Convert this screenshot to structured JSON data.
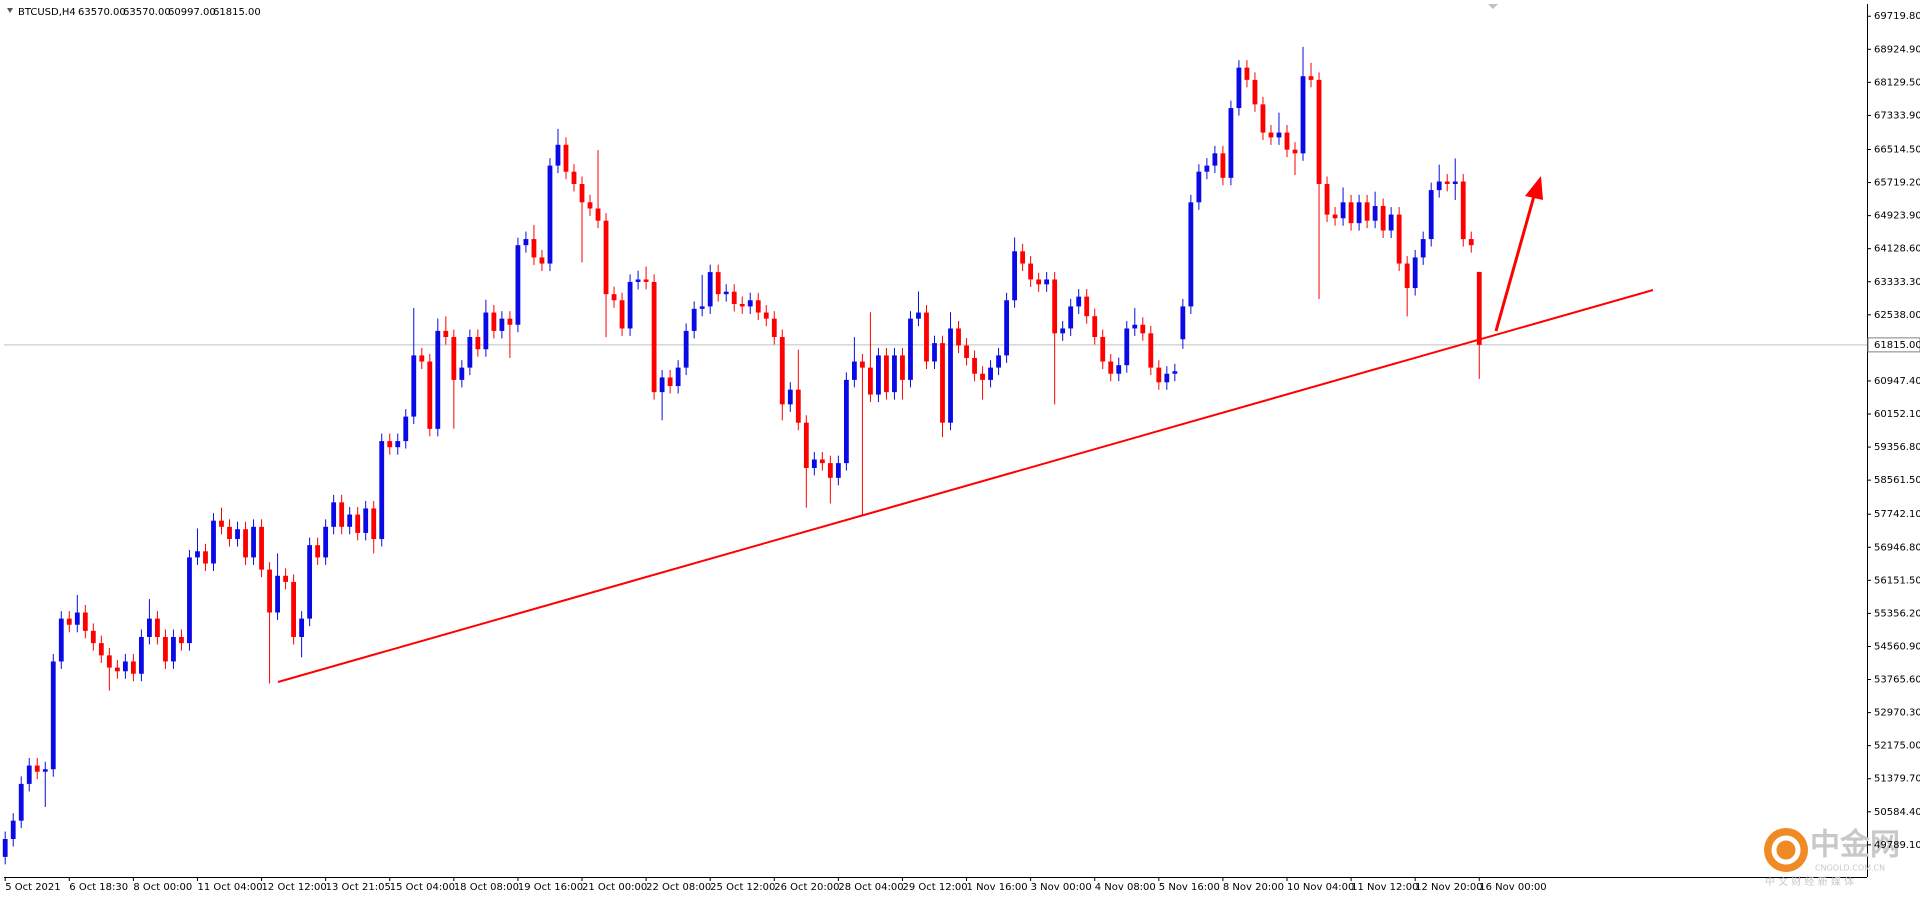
{
  "header": {
    "symbol": "BTCUSD,H4",
    "values": [
      "63570.00",
      "63570.00",
      "60997.00",
      "61815.00"
    ]
  },
  "watermark": {
    "name": "中金网",
    "url": "CNGOLD.COM.CN",
    "slogan": "中 文 财 经 新 媒 体"
  },
  "chart_data": {
    "type": "candlestick",
    "up_color": "#0a0ae6",
    "down_color": "#ff0000",
    "xlim": [
      -0.15,
      232.4
    ],
    "ylim": [
      49016,
      70014
    ],
    "price_line": {
      "value": 61815,
      "label": "61815.00"
    },
    "yticks": [
      {
        "value": 69719.8,
        "label": "69719.80"
      },
      {
        "value": 68924.9,
        "label": "68924.90"
      },
      {
        "value": 68129.5,
        "label": "68129.50"
      },
      {
        "value": 67333.9,
        "label": "67333.90"
      },
      {
        "value": 66514.5,
        "label": "66514.50"
      },
      {
        "value": 65719.2,
        "label": "65719.20"
      },
      {
        "value": 64923.9,
        "label": "64923.90"
      },
      {
        "value": 64128.6,
        "label": "64128.60"
      },
      {
        "value": 63333.3,
        "label": "63333.30"
      },
      {
        "value": 62538,
        "label": "62538.00"
      },
      {
        "value": 60947.4,
        "label": "60947.40"
      },
      {
        "value": 60152.1,
        "label": "60152.10"
      },
      {
        "value": 59356.8,
        "label": "59356.80"
      },
      {
        "value": 58561.5,
        "label": "58561.50"
      },
      {
        "value": 57742.1,
        "label": "57742.10"
      },
      {
        "value": 56946.8,
        "label": "56946.80"
      },
      {
        "value": 56151.5,
        "label": "56151.50"
      },
      {
        "value": 55356.2,
        "label": "55356.20"
      },
      {
        "value": 54560.9,
        "label": "54560.90"
      },
      {
        "value": 53765.6,
        "label": "53765.60"
      },
      {
        "value": 52970.3,
        "label": "52970.30"
      },
      {
        "value": 52175,
        "label": "52175.00"
      },
      {
        "value": 51379.7,
        "label": "51379.70"
      },
      {
        "value": 50584.4,
        "label": "50584.40"
      },
      {
        "value": 49789.1,
        "label": "49789.10"
      }
    ],
    "categories": [
      "5 Oct 2021",
      null,
      null,
      null,
      null,
      null,
      null,
      null,
      "6 Oct 18:30",
      null,
      null,
      null,
      null,
      null,
      null,
      null,
      "8 Oct 00:00",
      null,
      null,
      null,
      null,
      null,
      null,
      null,
      "11 Oct 04:00",
      null,
      null,
      null,
      null,
      null,
      null,
      null,
      "12 Oct 12:00",
      null,
      null,
      null,
      null,
      null,
      null,
      null,
      "13 Oct 21:05",
      null,
      null,
      null,
      null,
      null,
      null,
      null,
      "15 Oct 04:00",
      null,
      null,
      null,
      null,
      null,
      null,
      null,
      "18 Oct 08:00",
      null,
      null,
      null,
      null,
      null,
      null,
      null,
      "19 Oct 16:00",
      null,
      null,
      null,
      null,
      null,
      null,
      null,
      "21 Oct 00:00",
      null,
      null,
      null,
      null,
      null,
      null,
      null,
      "22 Oct 08:00",
      null,
      null,
      null,
      null,
      null,
      null,
      null,
      "25 Oct 12:00",
      null,
      null,
      null,
      null,
      null,
      null,
      null,
      "26 Oct 20:00",
      null,
      null,
      null,
      null,
      null,
      null,
      null,
      "28 Oct 04:00",
      null,
      null,
      null,
      null,
      null,
      null,
      null,
      "29 Oct 12:00",
      null,
      null,
      null,
      null,
      null,
      null,
      null,
      "1 Nov 16:00",
      null,
      null,
      null,
      null,
      null,
      null,
      null,
      "3 Nov 00:00",
      null,
      null,
      null,
      null,
      null,
      null,
      null,
      "4 Nov 08:00",
      null,
      null,
      null,
      null,
      null,
      null,
      null,
      "5 Nov 16:00",
      null,
      null,
      null,
      null,
      null,
      null,
      null,
      "8 Nov 20:00",
      null,
      null,
      null,
      null,
      null,
      null,
      null,
      "10 Nov 04:00",
      null,
      null,
      null,
      null,
      null,
      null,
      null,
      "11 Nov 12:00",
      null,
      null,
      null,
      null,
      null,
      null,
      null,
      "12 Nov 20:00",
      null,
      null,
      null,
      null,
      null,
      null,
      null,
      "16 Nov 00:00"
    ],
    "open": [
      49500,
      49930,
      50371,
      51255,
      51697,
      51549,
      51608,
      54200,
      55231,
      55083,
      55378,
      54936,
      54642,
      54347,
      54053,
      53964,
      54200,
      53905,
      54789,
      55231,
      54789,
      54200,
      54789,
      54642,
      56703,
      56850,
      56556,
      57587,
      57439,
      57145,
      57381,
      56703,
      57439,
      56409,
      55378,
      56261,
      56114,
      54789,
      55231,
      56998,
      56703,
      57439,
      58028,
      57439,
      57734,
      57292,
      57881,
      57145,
      59501,
      59354,
      59501,
      60090,
      61562,
      61415,
      59795,
      62151,
      62004,
      60973,
      61268,
      62004,
      61710,
      62593,
      62151,
      62446,
      62299,
      64213,
      64360,
      63918,
      63771,
      66127,
      66628,
      65980,
      65685,
      65244,
      65096,
      64802,
      63035,
      62888,
      62210,
      63329,
      63388,
      63329,
      60679,
      61032,
      60826,
      61268,
      62151,
      62682,
      62740,
      63565,
      63035,
      63094,
      62799,
      62740,
      62888,
      62593,
      62446,
      62004,
      60384,
      60738,
      59943,
      58853,
      59059,
      58971,
      58617,
      58971,
      60973,
      61415,
      61268,
      60620,
      61562,
      60679,
      61562,
      60973,
      62446,
      62593,
      61415,
      61857,
      59943,
      62210,
      61800,
      61500,
      61121,
      60973,
      61268,
      61562,
      62888,
      64066,
      63771,
      63388,
      63271,
      63388,
      62093,
      62210,
      62740,
      62976,
      62505,
      62004,
      61415,
      61121,
      61327,
      62210,
      62299,
      62093,
      61268,
      60915,
      61121,
      61950,
      62740,
      65244,
      65980,
      66127,
      66422,
      65833,
      67511,
      68483,
      68189,
      67600,
      66922,
      66805,
      66922,
      66510,
      66422,
      68277,
      68189,
      65685,
      64949,
      64861,
      65244,
      64743,
      65244,
      64802,
      65155,
      64566,
      64949,
      63771,
      63182,
      63918,
      64360,
      65538,
      65744,
      65685,
      65744,
      64360,
      63570
    ],
    "high": [
      50110,
      50551,
      51435,
      51877,
      51877,
      51788,
      54380,
      55411,
      55411,
      55800,
      55558,
      55116,
      54822,
      54527,
      54233,
      54380,
      54380,
      54969,
      55700,
      55411,
      54969,
      54969,
      54969,
      56883,
      57400,
      57030,
      57767,
      57900,
      57619,
      57561,
      57561,
      57619,
      57619,
      56589,
      56800,
      56441,
      56294,
      55411,
      57178,
      57178,
      57619,
      58208,
      58208,
      57914,
      57914,
      58061,
      58061,
      59681,
      59681,
      59681,
      60270,
      62700,
      61742,
      61595,
      62450,
      62500,
      62184,
      61448,
      62184,
      62184,
      62900,
      62773,
      62626,
      62626,
      64393,
      64540,
      64700,
      64098,
      66307,
      67011,
      66808,
      66160,
      65865,
      65424,
      66500,
      64982,
      63215,
      63068,
      63509,
      63600,
      63700,
      63509,
      61212,
      61212,
      61448,
      62331,
      62862,
      63500,
      63745,
      63745,
      63274,
      63274,
      62979,
      63068,
      63068,
      62773,
      62626,
      62184,
      60918,
      61700,
      60123,
      59239,
      59239,
      59151,
      59151,
      61153,
      62000,
      61595,
      62600,
      61742,
      61742,
      61742,
      61742,
      62626,
      63100,
      62773,
      62037,
      62037,
      62600,
      62390,
      61980,
      61680,
      61301,
      61448,
      61742,
      63068,
      64400,
      64246,
      63951,
      63551,
      63568,
      63568,
      62390,
      62920,
      63156,
      63156,
      62685,
      62184,
      61595,
      61507,
      62390,
      62700,
      62479,
      62273,
      61448,
      61301,
      61360,
      62920,
      65424,
      66160,
      66307,
      66602,
      66602,
      67691,
      68663,
      68663,
      68369,
      67780,
      67102,
      67400,
      67102,
      66690,
      68984,
      68600,
      68369,
      65865,
      65129,
      65600,
      65424,
      65424,
      65424,
      65500,
      65335,
      65129,
      65129,
      63951,
      64098,
      64540,
      65718,
      66150,
      65924,
      66300,
      65924,
      64540,
      63570
    ],
    "low": [
      49320,
      49750,
      50191,
      51075,
      51369,
      50700,
      51428,
      54020,
      54903,
      54903,
      54756,
      54462,
      54167,
      53500,
      53784,
      53784,
      53725,
      53725,
      54609,
      54609,
      54020,
      54020,
      54462,
      54462,
      56523,
      56376,
      56376,
      57259,
      56965,
      56965,
      56523,
      56523,
      56229,
      53670,
      55198,
      55934,
      54609,
      54300,
      55051,
      56523,
      56523,
      57259,
      57259,
      57259,
      57112,
      57112,
      56800,
      56965,
      59174,
      59174,
      59321,
      59910,
      61235,
      59615,
      59615,
      61824,
      59800,
      60793,
      61088,
      61530,
      61530,
      61971,
      61971,
      61500,
      62119,
      64033,
      63738,
      63591,
      63591,
      65947,
      65800,
      65505,
      63800,
      64916,
      64622,
      62000,
      62708,
      62030,
      62030,
      63149,
      63149,
      60499,
      60000,
      60646,
      60646,
      61088,
      61971,
      62502,
      62560,
      62855,
      62855,
      62619,
      62560,
      62560,
      62413,
      62266,
      61824,
      60000,
      60204,
      59763,
      57900,
      58673,
      58791,
      58000,
      58437,
      58791,
      60793,
      57717,
      60440,
      60440,
      60499,
      60499,
      60500,
      60793,
      62266,
      61235,
      61235,
      59600,
      59763,
      61620,
      61320,
      60941,
      60500,
      60793,
      61088,
      61382,
      62708,
      63591,
      63208,
      63091,
      63091,
      60384,
      61913,
      62030,
      62560,
      62325,
      61824,
      61235,
      60941,
      60941,
      61147,
      62030,
      61913,
      61088,
      60735,
      60735,
      60941,
      61720,
      62560,
      65064,
      65800,
      65947,
      65653,
      65653,
      67331,
      68009,
      67420,
      66742,
      66625,
      66625,
      66330,
      65900,
      66242,
      68009,
      62917,
      64769,
      64681,
      64681,
      64563,
      64563,
      64622,
      64622,
      64386,
      64386,
      63591,
      62500,
      63002,
      63738,
      64180,
      65358,
      65505,
      65300,
      64180,
      64033,
      60997
    ],
    "close": [
      49930,
      50371,
      51255,
      51697,
      51549,
      51608,
      54200,
      55231,
      55083,
      55378,
      54936,
      54642,
      54347,
      54053,
      53964,
      54200,
      53905,
      54789,
      55231,
      54789,
      54200,
      54789,
      54642,
      56703,
      56850,
      56556,
      57587,
      57439,
      57145,
      57381,
      56703,
      57439,
      56409,
      55378,
      56261,
      56114,
      54789,
      55231,
      56998,
      56703,
      57439,
      58028,
      57439,
      57734,
      57292,
      57881,
      57145,
      59501,
      59354,
      59501,
      60090,
      61562,
      61415,
      59795,
      62151,
      62004,
      60973,
      61268,
      62004,
      61710,
      62593,
      62151,
      62446,
      62299,
      64213,
      64360,
      63918,
      63771,
      66127,
      66628,
      65980,
      65685,
      65244,
      65096,
      64802,
      63035,
      62888,
      62210,
      63329,
      63388,
      63329,
      60679,
      61032,
      60826,
      61268,
      62151,
      62682,
      62740,
      63565,
      63035,
      63094,
      62799,
      62740,
      62888,
      62593,
      62446,
      62004,
      60384,
      60738,
      59943,
      58853,
      59059,
      58971,
      58617,
      58971,
      60973,
      61415,
      61268,
      60620,
      61562,
      60679,
      61562,
      60973,
      62446,
      62593,
      61415,
      61857,
      59943,
      62210,
      61800,
      61500,
      61121,
      60973,
      61268,
      61562,
      62888,
      64066,
      63771,
      63388,
      63271,
      63388,
      62093,
      62210,
      62740,
      62976,
      62505,
      62004,
      61415,
      61121,
      61327,
      62210,
      62299,
      62093,
      61268,
      60915,
      61121,
      61180,
      62740,
      65244,
      65980,
      66127,
      66422,
      65833,
      67511,
      68483,
      68189,
      67600,
      66922,
      66805,
      66922,
      66510,
      66422,
      68277,
      68189,
      65685,
      64949,
      64861,
      65244,
      64743,
      65244,
      64802,
      65155,
      64566,
      64949,
      63771,
      63182,
      63918,
      64360,
      65538,
      65744,
      65685,
      65744,
      64360,
      64213,
      61815
    ]
  }
}
